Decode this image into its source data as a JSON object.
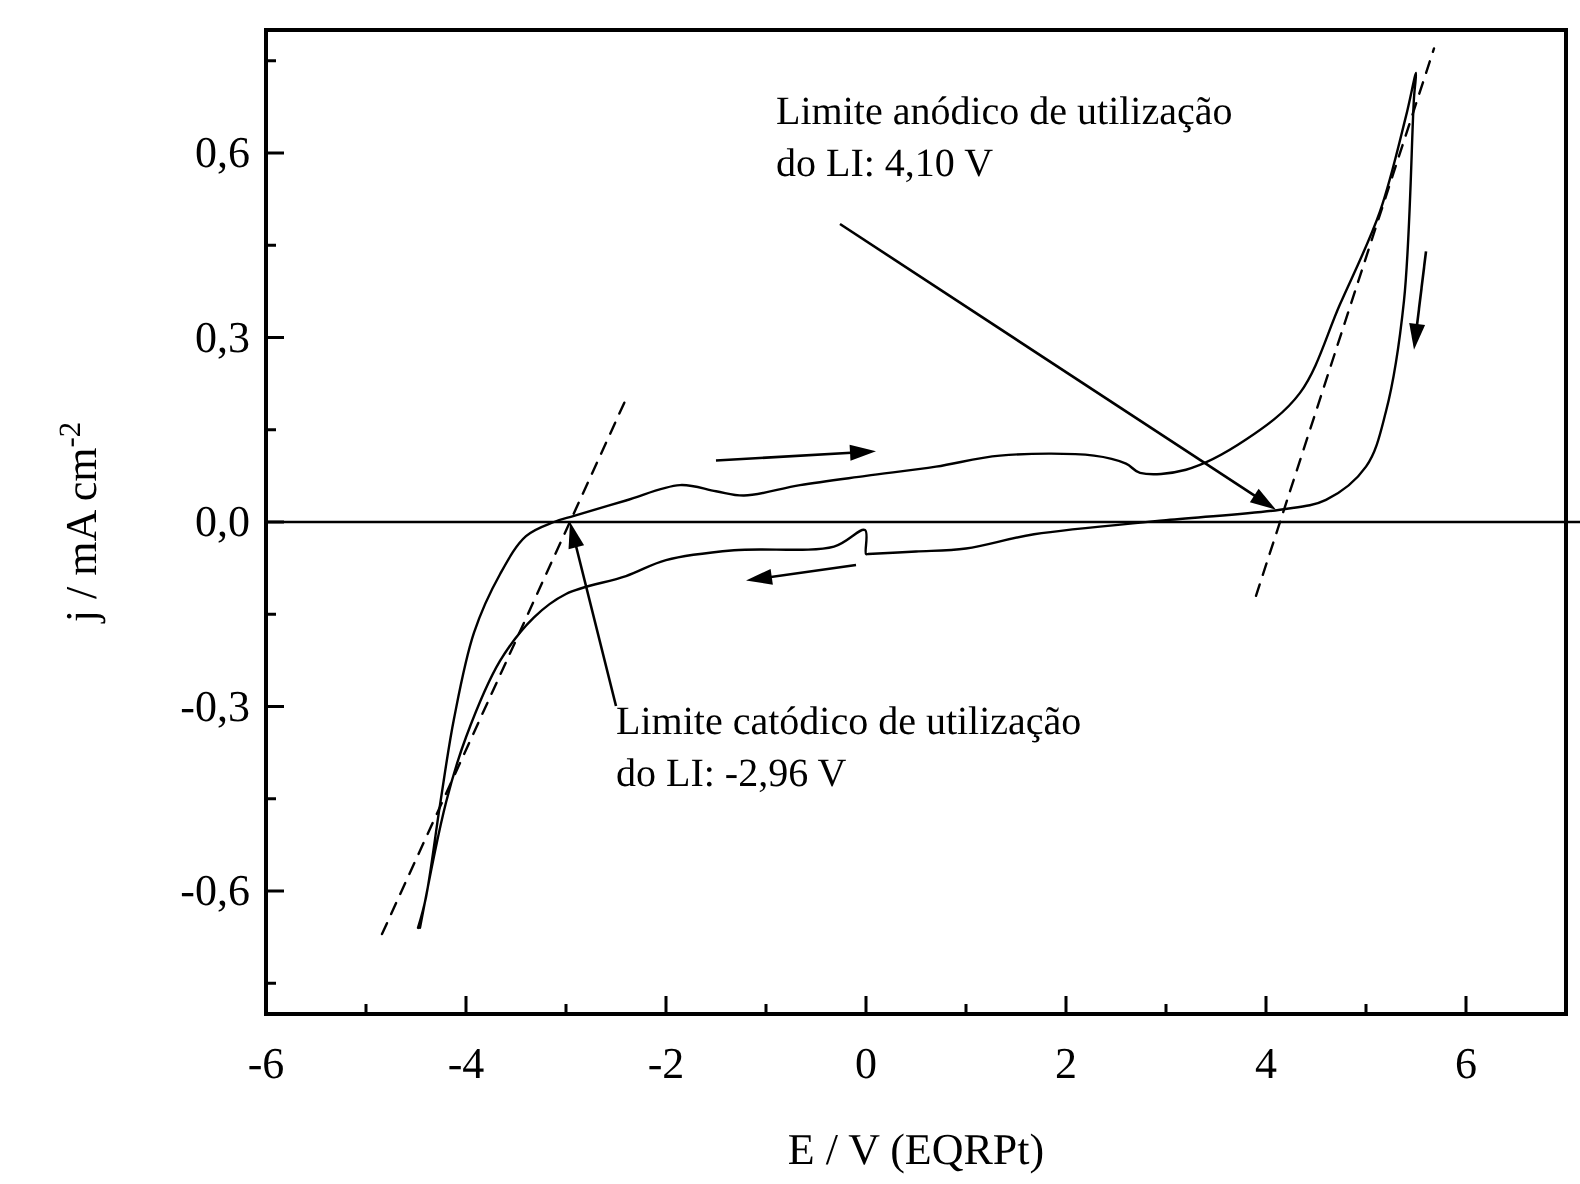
{
  "chart_data": {
    "type": "line",
    "xlabel": "E / V (EQRPt)",
    "ylabel": "j / mA cm$^{-2}$",
    "xlim": [
      -6,
      7
    ],
    "ylim": [
      -0.8,
      0.8
    ],
    "xticks": [
      -6,
      {
        "value": -5,
        "label": null
      },
      -4,
      {
        "value": -3,
        "label": null
      },
      -2,
      {
        "value": -1,
        "label": null
      },
      0,
      {
        "value": 1,
        "label": null
      },
      2,
      {
        "value": 3,
        "label": null
      },
      4,
      {
        "value": 5,
        "label": null
      },
      6
    ],
    "yticks": [
      {
        "value": -0.75,
        "label": null
      },
      {
        "value": -0.6,
        "label": "-0,6"
      },
      {
        "value": -0.45,
        "label": null
      },
      {
        "value": -0.3,
        "label": "-0,3"
      },
      {
        "value": -0.15,
        "label": null
      },
      {
        "value": 0,
        "label": "0,0"
      },
      {
        "value": 0.15,
        "label": null
      },
      {
        "value": 0.3,
        "label": "0,3"
      },
      {
        "value": 0.45,
        "label": null
      },
      {
        "value": 0.6,
        "label": "0,6"
      },
      {
        "value": 0.75,
        "label": null
      }
    ],
    "grid": false,
    "marker": "none",
    "series": [
      {
        "color": "#000000",
        "line_style": "solid",
        "x": [
          -4.48,
          -4.4,
          -4.26,
          -4.12,
          -3.92,
          -3.66,
          -3.4,
          -3.12,
          -2.92,
          -2.4,
          -1.86,
          -1.5,
          -1.22,
          -0.66,
          0,
          0.7,
          1.34,
          2.28,
          2.6,
          2.74,
          3.2,
          3.8,
          4.34,
          4.74,
          5.14,
          5.4,
          5.5,
          5.48,
          5.38,
          5.2,
          5.0,
          4.6,
          4.14,
          3.0,
          1.68,
          1.0,
          0.5,
          0.02,
          0,
          -0.01,
          -0.32,
          -1.32,
          -2.0,
          -2.4,
          -3.0,
          -3.32,
          -3.66,
          -4.0,
          -4.2,
          -4.46
        ],
        "values": [
          -0.66,
          -0.61,
          -0.46,
          -0.32,
          -0.18,
          -0.085,
          -0.023,
          0,
          0.01,
          0.035,
          0.06,
          0.05,
          0.043,
          0.06,
          0.075,
          0.09,
          0.108,
          0.108,
          0.095,
          0.08,
          0.085,
          0.134,
          0.21,
          0.354,
          0.505,
          0.66,
          0.73,
          0.69,
          0.36,
          0.18,
          0.09,
          0.036,
          0.02,
          0.003,
          -0.02,
          -0.043,
          -0.048,
          -0.052,
          -0.052,
          -0.013,
          -0.04,
          -0.046,
          -0.062,
          -0.088,
          -0.117,
          -0.155,
          -0.226,
          -0.35,
          -0.456,
          -0.66
        ]
      },
      {
        "color": "#000000",
        "line_style": "dashed",
        "x": [
          -4.84,
          -2.4
        ],
        "values": [
          -0.67,
          0.2
        ]
      },
      {
        "color": "#000000",
        "line_style": "dashed",
        "x": [
          3.9,
          5.68
        ],
        "values": [
          -0.12,
          0.77
        ]
      }
    ],
    "ref_lines": [
      {
        "axis": "y",
        "value": 0,
        "color": "#000000",
        "line_style": "solid"
      }
    ],
    "annotations": [
      {
        "text": "Limite anódico de utilização\ndo LI: 4,10 V",
        "x": 4.1,
        "y": 0.02
      },
      {
        "text": "Limite catódico de utilização\ndo LI: -2,96 V",
        "x": -2.96,
        "y": 0
      }
    ]
  }
}
